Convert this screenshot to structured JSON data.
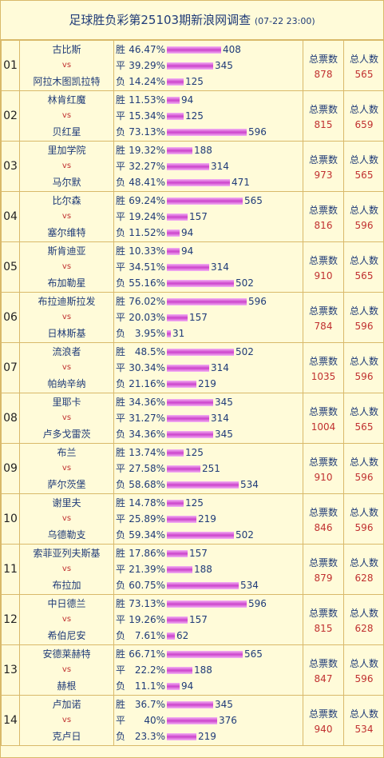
{
  "header": {
    "title": "足球胜负彩第25103期新浪网调查",
    "time": "(07-22 23:00)"
  },
  "labels": {
    "win": "胜",
    "draw": "平",
    "lose": "负",
    "vs": "vs",
    "total_votes": "总票数",
    "total_people": "总人数"
  },
  "colors": {
    "bar": "#cc44cc",
    "value": "#c03030",
    "text": "#1f3b78"
  },
  "matches": [
    {
      "no": "01",
      "home": "古比斯",
      "away": "阿拉木图凯拉特",
      "win": {
        "pct": "46.47%",
        "count": 408
      },
      "draw": {
        "pct": "39.29%",
        "count": 345
      },
      "lose": {
        "pct": "14.24%",
        "count": 125
      },
      "votes": "878",
      "people": "565"
    },
    {
      "no": "02",
      "home": "林肯红魔",
      "away": "贝红星",
      "win": {
        "pct": "11.53%",
        "count": 94
      },
      "draw": {
        "pct": "15.34%",
        "count": 125
      },
      "lose": {
        "pct": "73.13%",
        "count": 596
      },
      "votes": "815",
      "people": "659"
    },
    {
      "no": "03",
      "home": "里加学院",
      "away": "马尔默",
      "win": {
        "pct": "19.32%",
        "count": 188
      },
      "draw": {
        "pct": "32.27%",
        "count": 314
      },
      "lose": {
        "pct": "48.41%",
        "count": 471
      },
      "votes": "973",
      "people": "565"
    },
    {
      "no": "04",
      "home": "比尔森",
      "away": "塞尔维特",
      "win": {
        "pct": "69.24%",
        "count": 565
      },
      "draw": {
        "pct": "19.24%",
        "count": 157
      },
      "lose": {
        "pct": "11.52%",
        "count": 94
      },
      "votes": "816",
      "people": "596"
    },
    {
      "no": "05",
      "home": "斯肯迪亚",
      "away": "布加勒星",
      "win": {
        "pct": "10.33%",
        "count": 94
      },
      "draw": {
        "pct": "34.51%",
        "count": 314
      },
      "lose": {
        "pct": "55.16%",
        "count": 502
      },
      "votes": "910",
      "people": "565"
    },
    {
      "no": "06",
      "home": "布拉迪斯拉发",
      "away": "日林斯基",
      "win": {
        "pct": "76.02%",
        "count": 596
      },
      "draw": {
        "pct": "20.03%",
        "count": 157
      },
      "lose": {
        "pct": "3.95%",
        "count": 31
      },
      "votes": "784",
      "people": "596"
    },
    {
      "no": "07",
      "home": "流浪者",
      "away": "帕纳辛纳",
      "win": {
        "pct": "48.5%",
        "count": 502
      },
      "draw": {
        "pct": "30.34%",
        "count": 314
      },
      "lose": {
        "pct": "21.16%",
        "count": 219
      },
      "votes": "1035",
      "people": "596"
    },
    {
      "no": "08",
      "home": "里耶卡",
      "away": "卢多戈雷茨",
      "win": {
        "pct": "34.36%",
        "count": 345
      },
      "draw": {
        "pct": "31.27%",
        "count": 314
      },
      "lose": {
        "pct": "34.36%",
        "count": 345
      },
      "votes": "1004",
      "people": "565"
    },
    {
      "no": "09",
      "home": "布兰",
      "away": "萨尔茨堡",
      "win": {
        "pct": "13.74%",
        "count": 125
      },
      "draw": {
        "pct": "27.58%",
        "count": 251
      },
      "lose": {
        "pct": "58.68%",
        "count": 534
      },
      "votes": "910",
      "people": "596"
    },
    {
      "no": "10",
      "home": "谢里夫",
      "away": "乌德勒支",
      "win": {
        "pct": "14.78%",
        "count": 125
      },
      "draw": {
        "pct": "25.89%",
        "count": 219
      },
      "lose": {
        "pct": "59.34%",
        "count": 502
      },
      "votes": "846",
      "people": "596"
    },
    {
      "no": "11",
      "home": "索菲亚列夫斯基",
      "away": "布拉加",
      "win": {
        "pct": "17.86%",
        "count": 157
      },
      "draw": {
        "pct": "21.39%",
        "count": 188
      },
      "lose": {
        "pct": "60.75%",
        "count": 534
      },
      "votes": "879",
      "people": "628"
    },
    {
      "no": "12",
      "home": "中日德兰",
      "away": "希伯尼安",
      "win": {
        "pct": "73.13%",
        "count": 596
      },
      "draw": {
        "pct": "19.26%",
        "count": 157
      },
      "lose": {
        "pct": "7.61%",
        "count": 62
      },
      "votes": "815",
      "people": "628"
    },
    {
      "no": "13",
      "home": "安德莱赫特",
      "away": "赫根",
      "win": {
        "pct": "66.71%",
        "count": 565
      },
      "draw": {
        "pct": "22.2%",
        "count": 188
      },
      "lose": {
        "pct": "11.1%",
        "count": 94
      },
      "votes": "847",
      "people": "596"
    },
    {
      "no": "14",
      "home": "卢加诺",
      "away": "克卢日",
      "win": {
        "pct": "36.7%",
        "count": 345
      },
      "draw": {
        "pct": "40%",
        "count": 376
      },
      "lose": {
        "pct": "23.3%",
        "count": 219
      },
      "votes": "940",
      "people": "534"
    }
  ]
}
